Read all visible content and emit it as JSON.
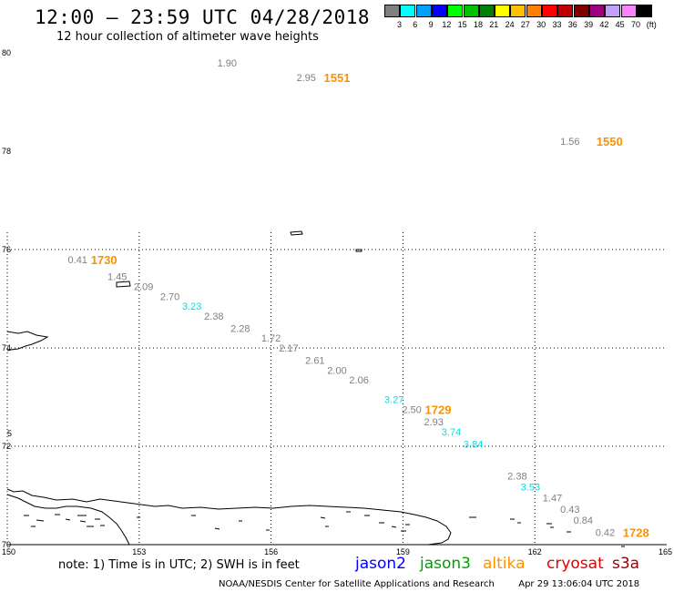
{
  "header": {
    "title": "12:00 – 23:59 UTC 04/28/2018",
    "subtitle": "12 hour collection of altimeter wave heights"
  },
  "colorbar": {
    "colors": [
      "#808080",
      "#00ffff",
      "#00a0ff",
      "#0000ff",
      "#00ff00",
      "#00c000",
      "#008000",
      "#ffff00",
      "#ffc000",
      "#ff8000",
      "#ff0000",
      "#c00000",
      "#800000",
      "#a00080",
      "#c0a0ff",
      "#ff80ff",
      "#000000"
    ],
    "labels": [
      "3",
      "6",
      "9",
      "12",
      "15",
      "18",
      "21",
      "24",
      "27",
      "30",
      "33",
      "36",
      "39",
      "42",
      "45",
      "70",
      "(ft)"
    ]
  },
  "axes": {
    "lat_labels": [
      {
        "label": "80",
        "lat": 80
      },
      {
        "label": "78",
        "lat": 78
      },
      {
        "label": "76",
        "lat": 76
      },
      {
        "label": "74",
        "lat": 74
      },
      {
        "label": "72",
        "lat": 72
      },
      {
        "label": "70",
        "lat": 70
      }
    ],
    "lon_labels": [
      {
        "label": "150",
        "lon": 150
      },
      {
        "label": "153",
        "lon": 153
      },
      {
        "label": "156",
        "lon": 156
      },
      {
        "label": "159",
        "lon": 159
      },
      {
        "label": "162",
        "lon": 162
      },
      {
        "label": "165",
        "lon": 165
      }
    ],
    "edge_mark": "5"
  },
  "observations": [
    {
      "text": "1.90",
      "lon": 155.0,
      "lat": 79.8,
      "color": "#808080"
    },
    {
      "text": "2.95",
      "lon": 156.8,
      "lat": 79.5,
      "color": "#808080"
    },
    {
      "text": "1.56",
      "lon": 162.8,
      "lat": 78.2,
      "color": "#808080"
    },
    {
      "text": "0.41",
      "lon": 151.6,
      "lat": 75.8,
      "color": "#808080"
    },
    {
      "text": "1.45",
      "lon": 152.5,
      "lat": 75.45,
      "color": "#808080"
    },
    {
      "text": "2.09",
      "lon": 153.1,
      "lat": 75.25,
      "color": "#808080"
    },
    {
      "text": "2.70",
      "lon": 153.7,
      "lat": 75.05,
      "color": "#808080"
    },
    {
      "text": "3.23",
      "lon": 154.2,
      "lat": 74.85,
      "color": "#00e0e0"
    },
    {
      "text": "2.38",
      "lon": 154.7,
      "lat": 74.65,
      "color": "#808080"
    },
    {
      "text": "2.28",
      "lon": 155.3,
      "lat": 74.4,
      "color": "#808080"
    },
    {
      "text": "1.72",
      "lon": 156.0,
      "lat": 74.2,
      "color": "#808080"
    },
    {
      "text": "2.17",
      "lon": 156.4,
      "lat": 74.0,
      "color": "#808080"
    },
    {
      "text": "2.61",
      "lon": 157.0,
      "lat": 73.75,
      "color": "#808080"
    },
    {
      "text": "2.00",
      "lon": 157.5,
      "lat": 73.55,
      "color": "#808080"
    },
    {
      "text": "2.06",
      "lon": 158.0,
      "lat": 73.35,
      "color": "#808080"
    },
    {
      "text": "3.27",
      "lon": 158.8,
      "lat": 72.95,
      "color": "#00e0e0"
    },
    {
      "text": "2.50",
      "lon": 159.2,
      "lat": 72.75,
      "color": "#808080"
    },
    {
      "text": "2.93",
      "lon": 159.7,
      "lat": 72.5,
      "color": "#808080"
    },
    {
      "text": "3.74",
      "lon": 160.1,
      "lat": 72.3,
      "color": "#00e0e0"
    },
    {
      "text": "3.84",
      "lon": 160.6,
      "lat": 72.05,
      "color": "#00e0e0"
    },
    {
      "text": "2.38",
      "lon": 161.6,
      "lat": 71.4,
      "color": "#808080"
    },
    {
      "text": "3.53",
      "lon": 161.9,
      "lat": 71.18,
      "color": "#00e0e0"
    },
    {
      "text": "1.47",
      "lon": 162.4,
      "lat": 70.95,
      "color": "#808080"
    },
    {
      "text": "0.43",
      "lon": 162.8,
      "lat": 70.72,
      "color": "#808080"
    },
    {
      "text": "0.84",
      "lon": 163.1,
      "lat": 70.5,
      "color": "#808080"
    },
    {
      "text": "0.42",
      "lon": 163.6,
      "lat": 70.25,
      "color": "#808080"
    }
  ],
  "pass_times": [
    {
      "text": "1551",
      "lon": 157.5,
      "lat": 79.5,
      "color": "#ff9000"
    },
    {
      "text": "1550",
      "lon": 163.7,
      "lat": 78.2,
      "color": "#ff9000"
    },
    {
      "text": "1730",
      "lon": 152.2,
      "lat": 75.8,
      "color": "#ff9000"
    },
    {
      "text": "1729",
      "lon": 159.8,
      "lat": 72.75,
      "color": "#ff9000"
    },
    {
      "text": "1728",
      "lon": 164.3,
      "lat": 70.25,
      "color": "#ff9000"
    }
  ],
  "footer": {
    "note": "note: 1) Time is in UTC; 2) SWH is in feet",
    "satellites": [
      {
        "name": "jason2",
        "color": "#0000ff"
      },
      {
        "name": "jason3",
        "color": "#00a000"
      },
      {
        "name": "altika",
        "color": "#ff9000"
      },
      {
        "name": "cryosat",
        "color": "#e00000"
      },
      {
        "name": "s3a",
        "color": "#a00000"
      }
    ],
    "credit": "NOAA/NESDIS Center for Satellite Applications and Research",
    "timestamp": "Apr 29 13:06:04 UTC 2018"
  }
}
